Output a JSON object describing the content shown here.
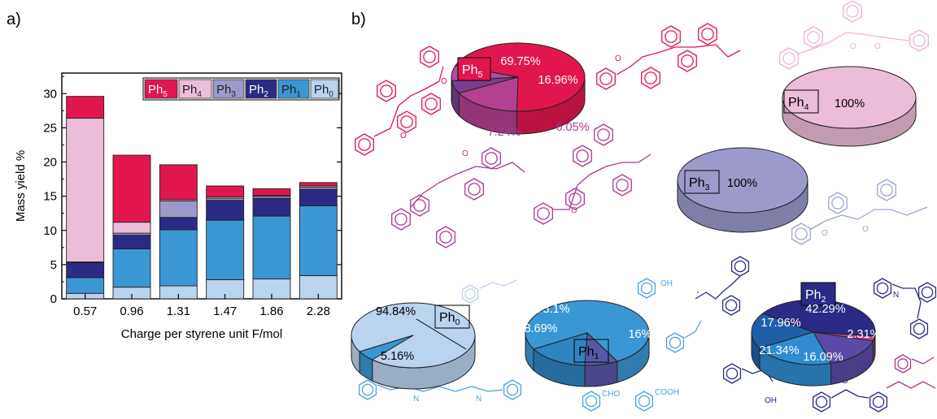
{
  "panels": {
    "a": "a)",
    "b": "b)"
  },
  "colors": {
    "Ph5": "#e2164f",
    "Ph4": "#ecbdd8",
    "Ph3": "#9b9acb",
    "Ph2": "#2b2a85",
    "Ph1": "#3b97d4",
    "Ph0": "#bad3ee",
    "magenta_mol": "#a93b8e",
    "red_mol": "#e2164f",
    "pink_mol": "#eeb3d3",
    "lavender_mol": "#9fa3d3",
    "blue_mol": "#4aa3da",
    "navy_mol": "#2b2a85"
  },
  "chart_data": [
    {
      "type": "bar",
      "stacked": true,
      "title": "",
      "xlabel": "Charge per styrene unit F/mol",
      "ylabel": "Mass yield %",
      "ylim": [
        0,
        33
      ],
      "yticks": [
        0,
        5,
        10,
        15,
        20,
        25,
        30
      ],
      "categories": [
        "0.57",
        "0.96",
        "1.31",
        "1.47",
        "1.86",
        "2.28"
      ],
      "legend_position": "top-right",
      "legend": [
        {
          "base": "Ph",
          "sub": "5",
          "key": "Ph5"
        },
        {
          "base": "Ph",
          "sub": "4",
          "key": "Ph4"
        },
        {
          "base": "Ph",
          "sub": "3",
          "key": "Ph3"
        },
        {
          "base": "Ph",
          "sub": "2",
          "key": "Ph2"
        },
        {
          "base": "Ph",
          "sub": "1",
          "key": "Ph1"
        },
        {
          "base": "Ph",
          "sub": "0",
          "key": "Ph0"
        }
      ],
      "series": [
        {
          "key": "Ph0",
          "values": [
            0.8,
            1.7,
            1.9,
            2.8,
            2.9,
            3.4
          ]
        },
        {
          "key": "Ph1",
          "values": [
            2.3,
            5.6,
            8.2,
            8.7,
            9.2,
            10.2
          ]
        },
        {
          "key": "Ph2",
          "values": [
            2.2,
            2.0,
            1.8,
            2.9,
            2.6,
            2.4
          ]
        },
        {
          "key": "Ph3",
          "values": [
            0.1,
            0.3,
            2.4,
            0.3,
            0.3,
            0.3
          ]
        },
        {
          "key": "Ph4",
          "values": [
            21.0,
            1.6,
            0.2,
            0.2,
            0.1,
            0.2
          ]
        },
        {
          "key": "Ph5",
          "values": [
            3.2,
            9.8,
            5.1,
            1.6,
            1.0,
            0.5
          ]
        }
      ]
    },
    {
      "type": "pie",
      "name": "Ph5",
      "label": {
        "base": "Ph",
        "sub": "5"
      },
      "slices": [
        {
          "value": 69.75,
          "label": "69.75%",
          "color": "#e2164f"
        },
        {
          "value": 16.96,
          "label": "16.96%",
          "color": "#b4418f"
        },
        {
          "value": 6.05,
          "label": "6.05%",
          "color": "#7a3d8b"
        },
        {
          "value": 7.24,
          "label": "7.24%",
          "color": "#b04ea3"
        }
      ]
    },
    {
      "type": "pie",
      "name": "Ph4",
      "label": {
        "base": "Ph",
        "sub": "4"
      },
      "slices": [
        {
          "value": 100,
          "label": "100%",
          "color": "#ecbdd8"
        }
      ]
    },
    {
      "type": "pie",
      "name": "Ph3",
      "label": {
        "base": "Ph",
        "sub": "3"
      },
      "slices": [
        {
          "value": 100,
          "label": "100%",
          "color": "#9b9acb"
        }
      ]
    },
    {
      "type": "pie",
      "name": "Ph0",
      "label": {
        "base": "Ph",
        "sub": "0"
      },
      "slices": [
        {
          "value": 94.84,
          "label": "94.84%",
          "color": "#bad3ee"
        },
        {
          "value": 5.16,
          "label": "5.16%",
          "color": "#3b97d4"
        }
      ]
    },
    {
      "type": "pie",
      "name": "Ph1",
      "label": {
        "base": "Ph",
        "sub": "1"
      },
      "slices": [
        {
          "value": 75.1,
          "label": "75.1%",
          "color": "#3b97d4"
        },
        {
          "value": 8.69,
          "label": "8.69%",
          "color": "#5858a8"
        },
        {
          "value": 16,
          "label": "16%",
          "color": "#2f84c2"
        }
      ]
    },
    {
      "type": "pie",
      "name": "Ph2",
      "label": {
        "base": "Ph",
        "sub": "2"
      },
      "slices": [
        {
          "value": 42.29,
          "label": "42.29%",
          "color": "#2b2a85"
        },
        {
          "value": 2.31,
          "label": "2.31%",
          "color": "#c53f8f"
        },
        {
          "value": 16.09,
          "label": "16.09%",
          "color": "#5a4aa6"
        },
        {
          "value": 21.34,
          "label": "21.34%",
          "color": "#2f8ccf"
        },
        {
          "value": 17.96,
          "label": "17.96%",
          "color": "#1f5fa8"
        }
      ]
    }
  ],
  "structure_labels": {
    "oh": "OH",
    "cho": "CHO",
    "cooh": "COOH",
    "o": "O",
    "n": "N",
    "h": "H"
  }
}
